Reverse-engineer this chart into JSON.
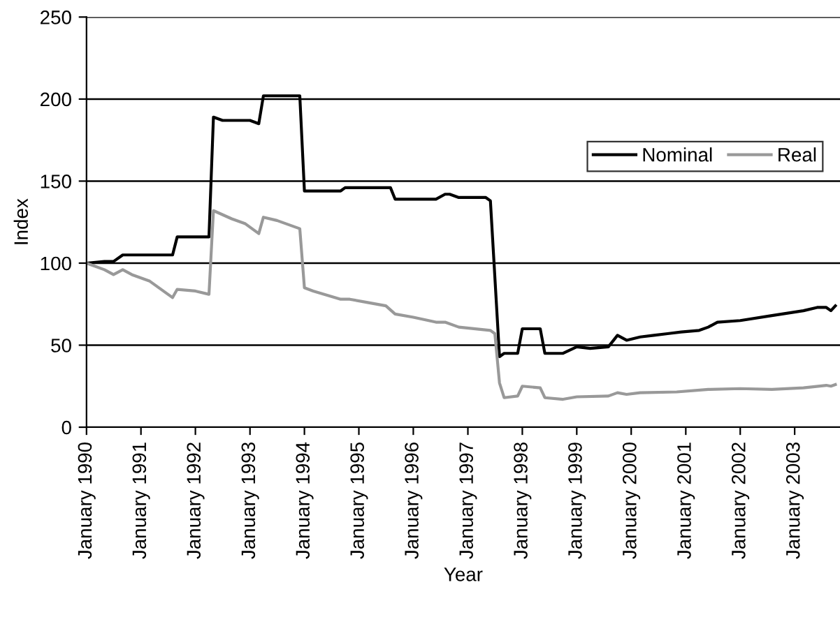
{
  "chart_data": {
    "type": "line",
    "xlabel": "Year",
    "ylabel": "Index",
    "xlim": [
      "1990-01",
      "2003-11"
    ],
    "xticks": [
      {
        "value": "1990-01",
        "label": "January 1990"
      },
      {
        "value": "1991-01",
        "label": "January 1991"
      },
      {
        "value": "1992-01",
        "label": "January 1992"
      },
      {
        "value": "1993-01",
        "label": "January 1993"
      },
      {
        "value": "1994-01",
        "label": "January 1994"
      },
      {
        "value": "1995-01",
        "label": "January 1995"
      },
      {
        "value": "1996-01",
        "label": "January 1996"
      },
      {
        "value": "1997-01",
        "label": "January 1997"
      },
      {
        "value": "1998-01",
        "label": "January 1998"
      },
      {
        "value": "1999-01",
        "label": "January 1999"
      },
      {
        "value": "2000-01",
        "label": "January 2000"
      },
      {
        "value": "2001-01",
        "label": "January 2001"
      },
      {
        "value": "2002-01",
        "label": "January 2002"
      },
      {
        "value": "2003-01",
        "label": "January 2003"
      }
    ],
    "ylim": [
      0,
      250
    ],
    "yticks": [
      0,
      50,
      100,
      150,
      200,
      250
    ],
    "grid": "y",
    "legend": "top right",
    "marker": "none",
    "line_style": "solid",
    "series": [
      {
        "name": "Nominal",
        "color": "#000000",
        "x": [
          "1990-01",
          "1990-05",
          "1990-07",
          "1990-09",
          "1991-08",
          "1991-09",
          "1992-04",
          "1992-05",
          "1992-07",
          "1993-01",
          "1993-03",
          "1993-04",
          "1993-12",
          "1994-01",
          "1994-09",
          "1994-10",
          "1995-08",
          "1995-09",
          "1996-06",
          "1996-08",
          "1996-09",
          "1996-11",
          "1997-05",
          "1997-06",
          "1997-08",
          "1997-09",
          "1997-12",
          "1998-01",
          "1998-05",
          "1998-06",
          "1998-10",
          "1999-01",
          "1999-04",
          "1999-08",
          "1999-10",
          "1999-12",
          "2000-03",
          "2000-06",
          "2000-09",
          "2000-12",
          "2001-04",
          "2001-06",
          "2001-08",
          "2002-01",
          "2002-08",
          "2003-03",
          "2003-06",
          "2003-08",
          "2003-09",
          "2003-10"
        ],
        "values": [
          100,
          101,
          101,
          105,
          105,
          116,
          116,
          189,
          187,
          187,
          185,
          202,
          202,
          144,
          144,
          146,
          146,
          139,
          139,
          142,
          142,
          140,
          140,
          138,
          43,
          45,
          45,
          60,
          60,
          45,
          45,
          49,
          48,
          49,
          56,
          53,
          55,
          56,
          57,
          58,
          59,
          61,
          64,
          65,
          68,
          71,
          73,
          73,
          71,
          74
        ]
      },
      {
        "name": "Real",
        "color": "#999999",
        "x": [
          "1990-01",
          "1990-05",
          "1990-07",
          "1990-09",
          "1990-11",
          "1991-03",
          "1991-08",
          "1991-09",
          "1992-01",
          "1992-04",
          "1992-05",
          "1992-09",
          "1992-12",
          "1993-03",
          "1993-04",
          "1993-07",
          "1993-12",
          "1994-01",
          "1994-03",
          "1994-09",
          "1994-11",
          "1995-03",
          "1995-07",
          "1995-09",
          "1996-01",
          "1996-06",
          "1996-08",
          "1996-11",
          "1997-06",
          "1997-07",
          "1997-08",
          "1997-09",
          "1997-12",
          "1998-01",
          "1998-05",
          "1998-06",
          "1998-10",
          "1999-01",
          "1999-08",
          "1999-10",
          "1999-12",
          "2000-03",
          "2000-11",
          "2001-06",
          "2002-01",
          "2002-08",
          "2003-03",
          "2003-08",
          "2003-09",
          "2003-10"
        ],
        "values": [
          100,
          96,
          93,
          96,
          93,
          89,
          79,
          84,
          83,
          81,
          132,
          127,
          124,
          118,
          128,
          126,
          121,
          85,
          83,
          78,
          78,
          76,
          74,
          69,
          67,
          64,
          64,
          61,
          59,
          57,
          27,
          18,
          19,
          25,
          24,
          18,
          17,
          18.5,
          19,
          21,
          20,
          21,
          21.5,
          23,
          23.5,
          23,
          24,
          25.5,
          25,
          26
        ]
      }
    ]
  }
}
